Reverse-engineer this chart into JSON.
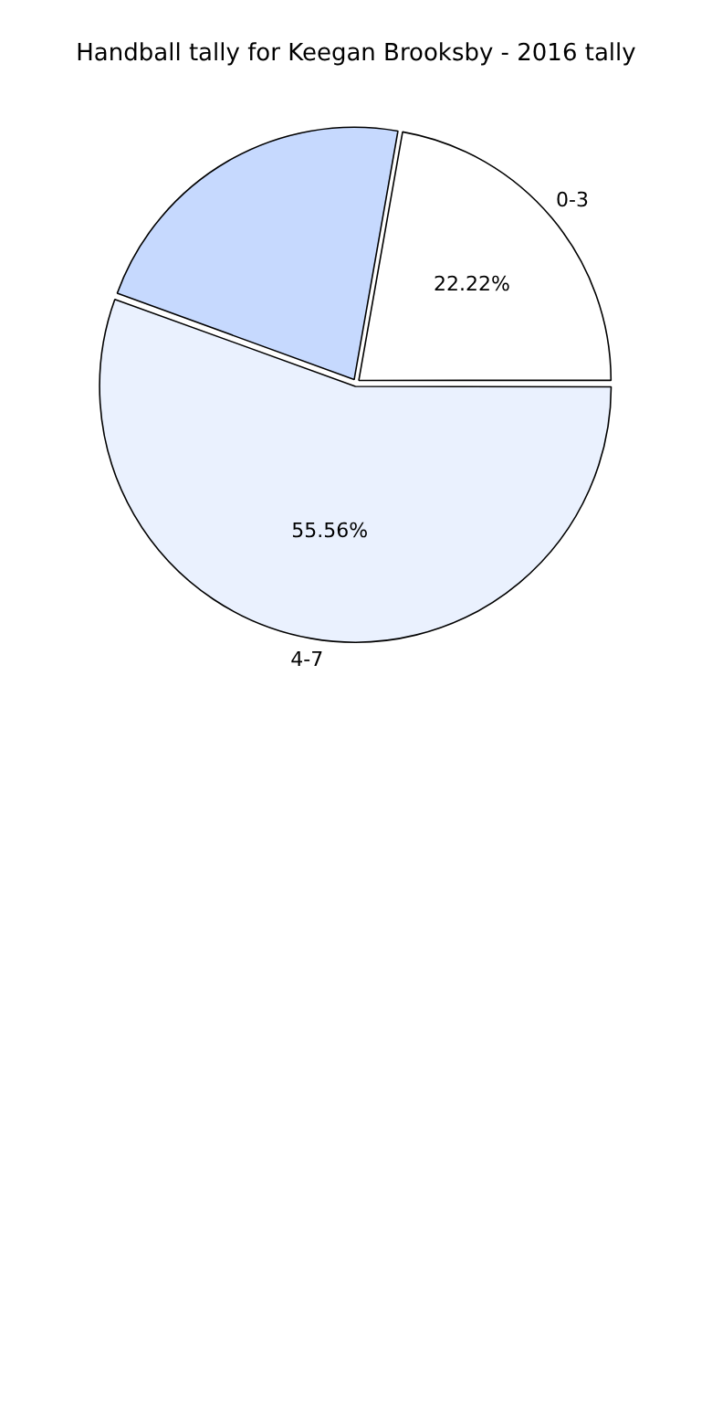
{
  "chart_data": {
    "type": "pie",
    "title": "Handball tally for Keegan Brooksby - 2016 tally",
    "categories": [
      "0-3",
      "4-7",
      null
    ],
    "values": [
      22.22,
      55.56,
      22.22
    ],
    "value_labels": [
      "22.22%",
      "55.56%",
      null
    ],
    "colors": [
      "#ffffff",
      "#eaf1fe",
      "#c6d9fe"
    ],
    "legend": false
  }
}
